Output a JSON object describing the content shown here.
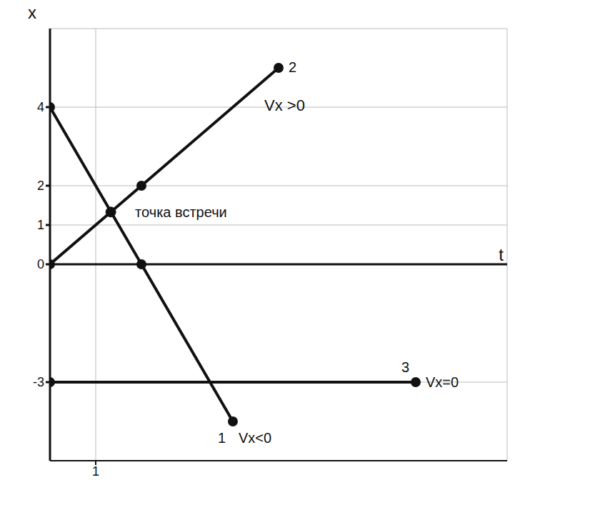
{
  "chart_data": {
    "type": "line",
    "x_label": "t",
    "y_label": "x",
    "xlim": [
      0,
      10
    ],
    "ylim": [
      -5,
      6
    ],
    "xticks": [
      1
    ],
    "yticks": [
      -3,
      0,
      1,
      2,
      4
    ],
    "grid": true,
    "color": "#111111",
    "marker": "circle",
    "series": [
      {
        "name": "1",
        "annotation": "Vx<0",
        "x": [
          0,
          2,
          4
        ],
        "values": [
          4,
          0,
          -4
        ]
      },
      {
        "name": "2",
        "annotation": "Vx >0",
        "x": [
          0,
          2,
          5
        ],
        "values": [
          0,
          2,
          5
        ]
      },
      {
        "name": "3",
        "annotation": "Vx=0",
        "x": [
          0,
          8
        ],
        "values": [
          -3,
          -3
        ]
      }
    ],
    "meeting_point": {
      "x": 1.33,
      "y": 1.33,
      "label": "точка встречи"
    }
  }
}
